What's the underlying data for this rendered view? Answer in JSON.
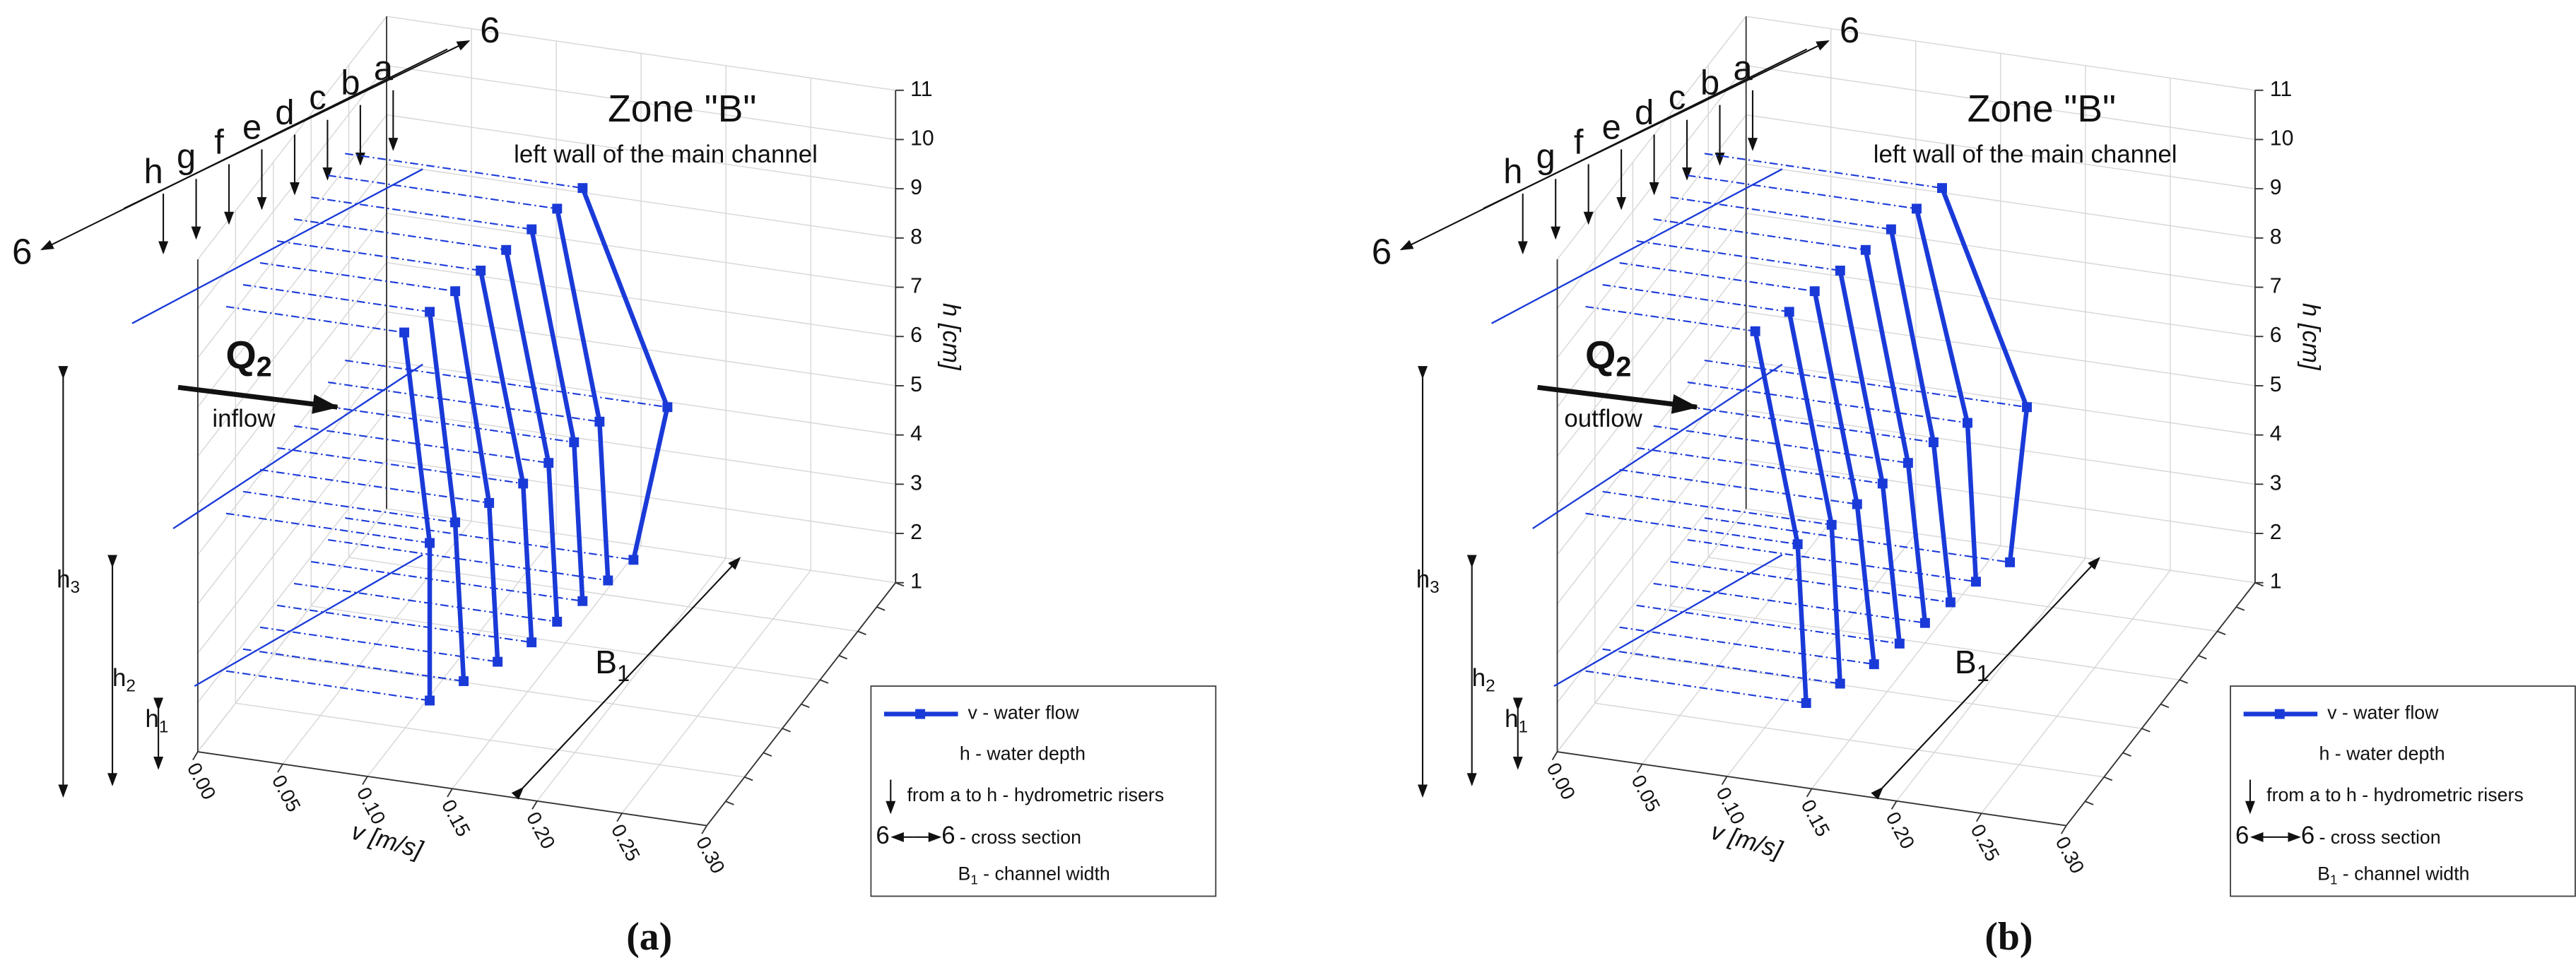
{
  "chart_data": [
    {
      "type": "line",
      "panel": "(a)",
      "title": "Zone \"B\"",
      "subtitle": "left wall of the main channel",
      "x_label": "v [m/s]",
      "y_label": "h [cm]",
      "color": "#1a3ad8",
      "xlim": [
        0,
        0.3
      ],
      "xticks": [
        {
          "value": 0,
          "label": "0.00"
        },
        0.05,
        {
          "value": 0.1,
          "label": "0.10"
        },
        0.15,
        {
          "value": 0.2,
          "label": "0.20"
        },
        0.25,
        {
          "value": 0.3,
          "label": "0.30"
        }
      ],
      "ylim": [
        1,
        11
      ],
      "yticks": [
        1,
        2,
        3,
        4,
        5,
        6,
        7,
        8,
        9,
        10,
        11
      ],
      "grid": true,
      "series": [
        {
          "name": "h",
          "h": [
            1.9,
            5.1,
            9.3
          ],
          "values": [
            0.12,
            0.12,
            0.105
          ]
        },
        {
          "name": "g",
          "h": [
            1.9,
            5.1,
            9.3
          ],
          "values": [
            0.13,
            0.125,
            0.11
          ]
        },
        {
          "name": "f",
          "h": [
            1.9,
            5.1,
            9.3
          ],
          "values": [
            0.14,
            0.135,
            0.115
          ]
        },
        {
          "name": "e",
          "h": [
            1.9,
            5.1,
            9.3
          ],
          "values": [
            0.15,
            0.145,
            0.12
          ]
        },
        {
          "name": "d",
          "h": [
            1.9,
            5.1,
            9.3
          ],
          "values": [
            0.155,
            0.15,
            0.125
          ]
        },
        {
          "name": "c",
          "h": [
            1.9,
            5.1,
            9.3
          ],
          "values": [
            0.16,
            0.155,
            0.13
          ]
        },
        {
          "name": "b",
          "h": [
            1.9,
            5.1,
            9.3
          ],
          "values": [
            0.165,
            0.16,
            0.135
          ]
        },
        {
          "name": "a",
          "h": [
            1.9,
            5.1,
            9.3
          ],
          "values": [
            0.17,
            0.19,
            0.14
          ]
        }
      ],
      "annotations": {
        "section_start": "6",
        "section_end": "6",
        "flow_symbol": "Q",
        "flow_sub": "2",
        "flow_label": "inflow",
        "h1": {
          "text": "h",
          "sub": "1"
        },
        "h2": {
          "text": "h",
          "sub": "2"
        },
        "h3": {
          "text": "h",
          "sub": "3"
        },
        "width": {
          "text": "B",
          "sub": "1"
        }
      },
      "legend": {
        "flow": "v - water flow",
        "depth": "h - water depth",
        "risers": "from a to h - hydrometric risers",
        "section_left": "6",
        "section_right": "6",
        "section": "- cross section",
        "width_text": "B",
        "width_sub": "1",
        "width": " - channel width"
      }
    },
    {
      "type": "line",
      "panel": "(b)",
      "title": "Zone \"B\"",
      "subtitle": "left wall of the main channel",
      "x_label": "v [m/s]",
      "y_label": "h [cm]",
      "color": "#1a3ad8",
      "xlim": [
        0,
        0.3
      ],
      "xticks": [
        {
          "value": 0,
          "label": "0.00"
        },
        0.05,
        {
          "value": 0.1,
          "label": "0.10"
        },
        0.15,
        {
          "value": 0.2,
          "label": "0.20"
        },
        0.25,
        {
          "value": 0.3,
          "label": "0.30"
        }
      ],
      "ylim": [
        1,
        11
      ],
      "yticks": [
        1,
        2,
        3,
        4,
        5,
        6,
        7,
        8,
        9,
        10,
        11
      ],
      "grid": true,
      "series": [
        {
          "name": "h",
          "h": [
            1.9,
            5.1,
            9.3
          ],
          "values": [
            0.13,
            0.125,
            0.1
          ]
        },
        {
          "name": "g",
          "h": [
            1.9,
            5.1,
            9.3
          ],
          "values": [
            0.14,
            0.135,
            0.11
          ]
        },
        {
          "name": "f",
          "h": [
            1.9,
            5.1,
            9.3
          ],
          "values": [
            0.15,
            0.14,
            0.115
          ]
        },
        {
          "name": "e",
          "h": [
            1.9,
            5.1,
            9.3
          ],
          "values": [
            0.155,
            0.145,
            0.12
          ]
        },
        {
          "name": "d",
          "h": [
            1.9,
            5.1,
            9.3
          ],
          "values": [
            0.16,
            0.15,
            0.125
          ]
        },
        {
          "name": "c",
          "h": [
            1.9,
            5.1,
            9.3
          ],
          "values": [
            0.165,
            0.155,
            0.13
          ]
        },
        {
          "name": "b",
          "h": [
            1.9,
            5.1,
            9.3
          ],
          "values": [
            0.17,
            0.165,
            0.135
          ]
        },
        {
          "name": "a",
          "h": [
            1.9,
            5.1,
            9.3
          ],
          "values": [
            0.18,
            0.19,
            0.14
          ]
        }
      ],
      "annotations": {
        "section_start": "6",
        "section_end": "6",
        "flow_symbol": "Q",
        "flow_sub": "2",
        "flow_label": "outflow",
        "h1": {
          "text": "h",
          "sub": "1"
        },
        "h2": {
          "text": "h",
          "sub": "2"
        },
        "h3": {
          "text": "h",
          "sub": "3"
        },
        "width": {
          "text": "B",
          "sub": "1"
        }
      },
      "legend": {
        "flow": "v - water flow",
        "depth": "h - water depth",
        "risers": "from a to h - hydrometric risers",
        "section_left": "6",
        "section_right": "6",
        "section": "- cross section",
        "width_text": "B",
        "width_sub": "1",
        "width": " - channel width"
      }
    }
  ]
}
